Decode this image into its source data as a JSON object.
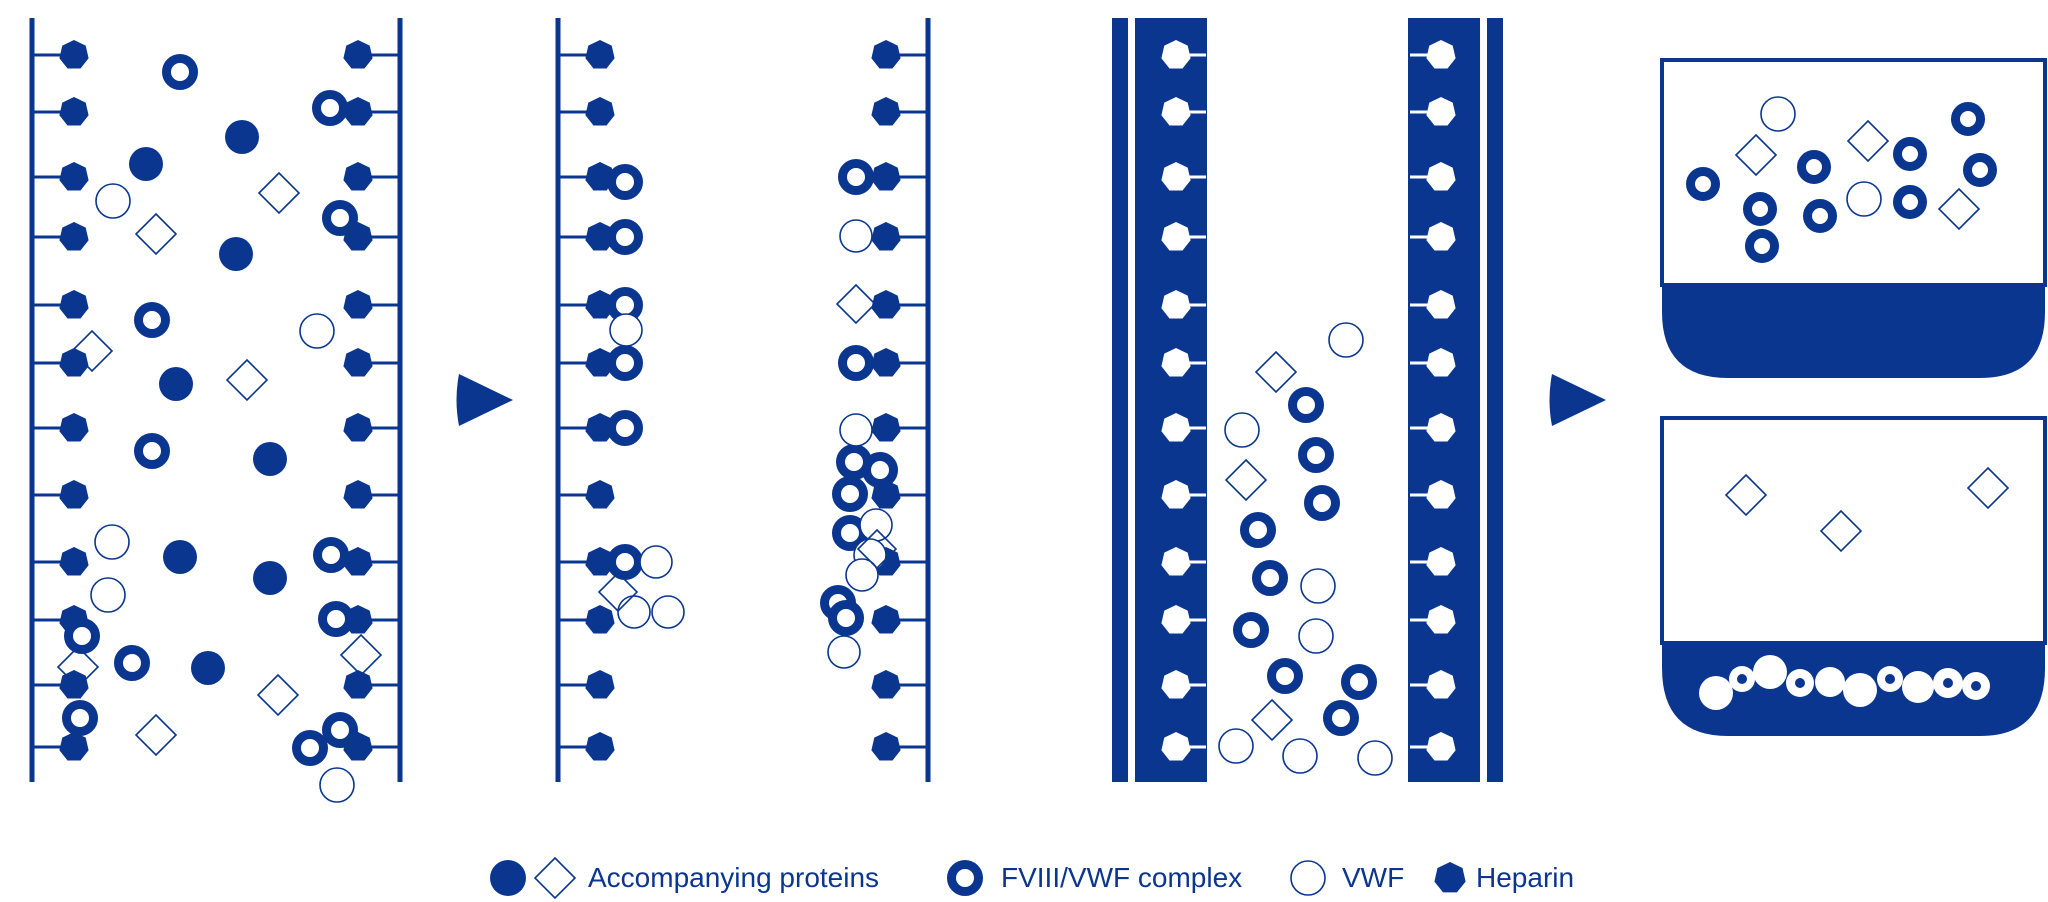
{
  "colors": {
    "primary": "#0a3690",
    "background": "#ffffff"
  },
  "icons": {
    "dot": "filled-circle-icon",
    "diamond": "hollow-diamond-icon",
    "ring": "ring-icon",
    "open_circle": "hollow-circle-icon",
    "hex": "heptagon-icon",
    "arrow": "play-triangle-icon"
  },
  "legend": {
    "accompanying_proteins": "Accompanying proteins",
    "fviii_vwf_complex": "FVIII/VWF complex",
    "vwf": "VWF",
    "heparin": "Heparin"
  }
}
